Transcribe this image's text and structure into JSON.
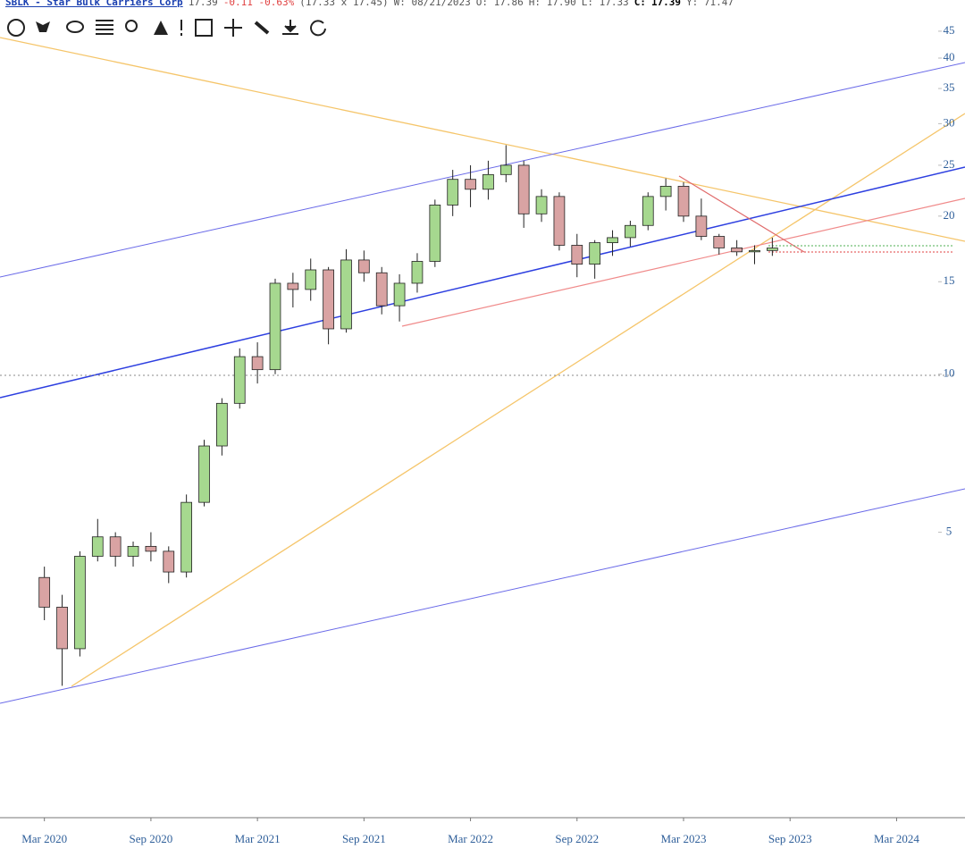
{
  "header": {
    "symbol": "SBLK - Star Bulk Carriers Corp",
    "last": "17.39",
    "change": "-0.11 -0.63%",
    "bid_ask": "(17.33 x 17.45)",
    "week": "W: 08/21/2023",
    "open": "O: 17.86",
    "high": "H: 17.90",
    "low": "L: 17.33",
    "close_label": "C:",
    "close": "17.39",
    "yield": "Y: 71.47"
  },
  "chart_data": {
    "type": "candlestick",
    "log_scale": true,
    "up_color": "#a6d88f",
    "down_color": "#d9a3a3",
    "x": [
      "2020-03",
      "2020-04",
      "2020-05",
      "2020-06",
      "2020-07",
      "2020-08",
      "2020-09",
      "2020-10",
      "2020-11",
      "2020-12",
      "2021-01",
      "2021-02",
      "2021-03",
      "2021-04",
      "2021-05",
      "2021-06",
      "2021-07",
      "2021-08",
      "2021-09",
      "2021-10",
      "2021-11",
      "2021-12",
      "2022-01",
      "2022-02",
      "2022-03",
      "2022-04",
      "2022-05",
      "2022-06",
      "2022-07",
      "2022-08",
      "2022-09",
      "2022-10",
      "2022-11",
      "2022-12",
      "2023-01",
      "2023-02",
      "2023-03",
      "2023-04",
      "2023-05",
      "2023-06",
      "2023-07",
      "2023-08"
    ],
    "open": [
      4.1,
      3.6,
      3.0,
      4.5,
      4.9,
      4.5,
      4.7,
      4.6,
      4.2,
      5.7,
      7.3,
      8.8,
      10.8,
      10.2,
      14.9,
      14.5,
      15.8,
      12.2,
      16.5,
      15.6,
      13.5,
      14.9,
      16.4,
      21.0,
      23.5,
      22.5,
      24.0,
      25.0,
      20.2,
      21.8,
      17.6,
      16.2,
      17.8,
      18.2,
      19.2,
      21.8,
      22.8,
      20.0,
      18.3,
      17.4,
      17.1,
      17.2
    ],
    "high": [
      4.3,
      3.8,
      4.6,
      5.3,
      5.0,
      4.8,
      5.0,
      4.7,
      5.9,
      7.5,
      9.0,
      11.2,
      11.5,
      15.2,
      15.6,
      16.6,
      16.0,
      17.3,
      17.2,
      16.0,
      15.5,
      17.0,
      21.5,
      24.5,
      25.0,
      25.5,
      27.3,
      25.5,
      22.5,
      22.2,
      18.5,
      18.0,
      18.8,
      19.6,
      22.2,
      23.6,
      23.2,
      21.6,
      18.5,
      18.0,
      17.6,
      18.2
    ],
    "low": [
      3.4,
      2.55,
      2.9,
      4.4,
      4.3,
      4.3,
      4.4,
      4.0,
      4.1,
      5.6,
      7.0,
      8.6,
      9.6,
      10.0,
      13.4,
      13.8,
      11.4,
      12.0,
      15.0,
      13.0,
      12.6,
      14.3,
      16.0,
      20.0,
      20.8,
      21.5,
      23.2,
      19.0,
      19.5,
      17.2,
      15.3,
      15.2,
      16.8,
      17.5,
      18.8,
      20.5,
      19.5,
      18.0,
      16.9,
      16.8,
      16.2,
      16.8
    ],
    "close": [
      3.6,
      3.0,
      4.5,
      4.9,
      4.5,
      4.7,
      4.6,
      4.2,
      5.7,
      7.3,
      8.8,
      10.8,
      10.2,
      14.9,
      14.5,
      15.8,
      12.2,
      16.5,
      15.6,
      13.5,
      14.9,
      16.4,
      21.0,
      23.5,
      22.5,
      24.0,
      25.0,
      20.2,
      21.8,
      17.6,
      16.2,
      17.8,
      18.2,
      19.2,
      21.8,
      22.8,
      20.0,
      18.3,
      17.4,
      17.1,
      17.2,
      17.39
    ],
    "xlim": [
      "2020-01",
      "2024-07"
    ],
    "xticks": [
      {
        "value": "2020-03",
        "label": "Mar 2020"
      },
      {
        "value": "2020-09",
        "label": "Sep 2020"
      },
      {
        "value": "2021-03",
        "label": "Mar 2021"
      },
      {
        "value": "2021-09",
        "label": "Sep 2021"
      },
      {
        "value": "2022-03",
        "label": "Mar 2022"
      },
      {
        "value": "2022-09",
        "label": "Sep 2022"
      },
      {
        "value": "2023-03",
        "label": "Mar 2023"
      },
      {
        "value": "2023-09",
        "label": "Sep 2023"
      },
      {
        "value": "2024-03",
        "label": "Mar 2024"
      }
    ],
    "ylim": [
      1.43,
      51.6
    ],
    "yticks": [
      5,
      10,
      15,
      20,
      25,
      30,
      35,
      40,
      45
    ]
  }
}
